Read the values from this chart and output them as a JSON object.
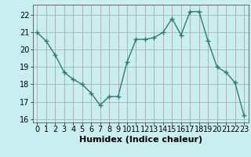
{
  "x": [
    0,
    1,
    2,
    3,
    4,
    5,
    6,
    7,
    8,
    9,
    10,
    11,
    12,
    13,
    14,
    15,
    16,
    17,
    18,
    19,
    20,
    21,
    22,
    23
  ],
  "y": [
    21.0,
    20.5,
    19.7,
    18.7,
    18.3,
    18.0,
    17.5,
    16.8,
    17.3,
    17.3,
    19.3,
    20.6,
    20.6,
    20.7,
    21.0,
    21.8,
    20.85,
    22.2,
    22.2,
    20.5,
    19.0,
    18.7,
    18.1,
    16.2
  ],
  "line_color": "#2e7d6e",
  "marker": "+",
  "marker_size": 4,
  "bg_color": "#c8eef0",
  "grid_color_major": "#b0b0b0",
  "grid_color_minor": "#d8d8d8",
  "xlabel": "Humidex (Indice chaleur)",
  "xlabel_fontsize": 8,
  "xlim": [
    -0.5,
    23.5
  ],
  "ylim": [
    15.8,
    22.6
  ],
  "yticks": [
    16,
    17,
    18,
    19,
    20,
    21,
    22
  ],
  "xtick_labels": [
    "0",
    "1",
    "2",
    "3",
    "4",
    "5",
    "6",
    "7",
    "8",
    "9",
    "10",
    "11",
    "12",
    "13",
    "14",
    "15",
    "16",
    "17",
    "18",
    "19",
    "20",
    "21",
    "22",
    "23"
  ],
  "tick_fontsize": 7,
  "fig_bg": "#c8eef0",
  "line_width": 1.0
}
